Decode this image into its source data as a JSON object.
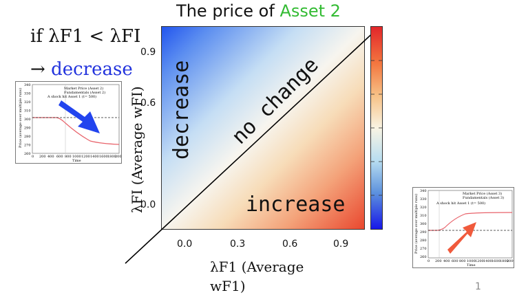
{
  "title": {
    "prefix": "The price of ",
    "accent": "Asset 2",
    "accent_color": "#33bb33"
  },
  "rule": {
    "line1": "if λF1 < λFI",
    "arrow": "→ ",
    "word": "decrease",
    "word_color": "#2233dd"
  },
  "heatmap": {
    "regions": {
      "upper_left": "decrease",
      "diagonal": "no change",
      "lower_right": "increase"
    },
    "yticks": [
      "0.9",
      "0.6",
      "0.0"
    ],
    "xticks": [
      "0.0",
      "0.3",
      "0.6",
      "0.9"
    ],
    "ylabel": "λFI (Average wFI)",
    "xlabel_line1": "λF1 (Average",
    "xlabel_line2": "wF1)",
    "colorbar": {
      "type": "diverging",
      "top_color": "#e2262a",
      "bottom_color": "#1717e8"
    }
  },
  "mini_charts": {
    "left": {
      "ylabel": "Price (average over multiple runs)",
      "xlabel": "Time",
      "legend": [
        "Market Price (Asset 2)",
        "Fundamentals (Asset 2)",
        "A shock hit Asset 1 (t= 500)"
      ],
      "yticks": [
        "340",
        "330",
        "320",
        "310",
        "300",
        "290",
        "280",
        "270",
        "260"
      ],
      "xticks": [
        "0",
        "200",
        "400",
        "600",
        "800",
        "1000",
        "1200",
        "1400",
        "1600",
        "1800",
        "2000"
      ],
      "arrow_color": "#2244ee"
    },
    "right": {
      "ylabel": "Price (average over multiple runs)",
      "xlabel": "Time",
      "legend": [
        "Market Price (Asset 3)",
        "Fundamentals (Asset 3)",
        "A shock hit Asset 1 (t= 500)"
      ],
      "yticks": [
        "340",
        "330",
        "320",
        "310",
        "300",
        "290",
        "280",
        "270",
        "260"
      ],
      "xticks": [
        "0",
        "200",
        "400",
        "600",
        "800",
        "1000",
        "1200",
        "1400",
        "1600",
        "1800",
        "2000"
      ],
      "arrow_color": "#f05a3c"
    }
  },
  "page_number": "1"
}
